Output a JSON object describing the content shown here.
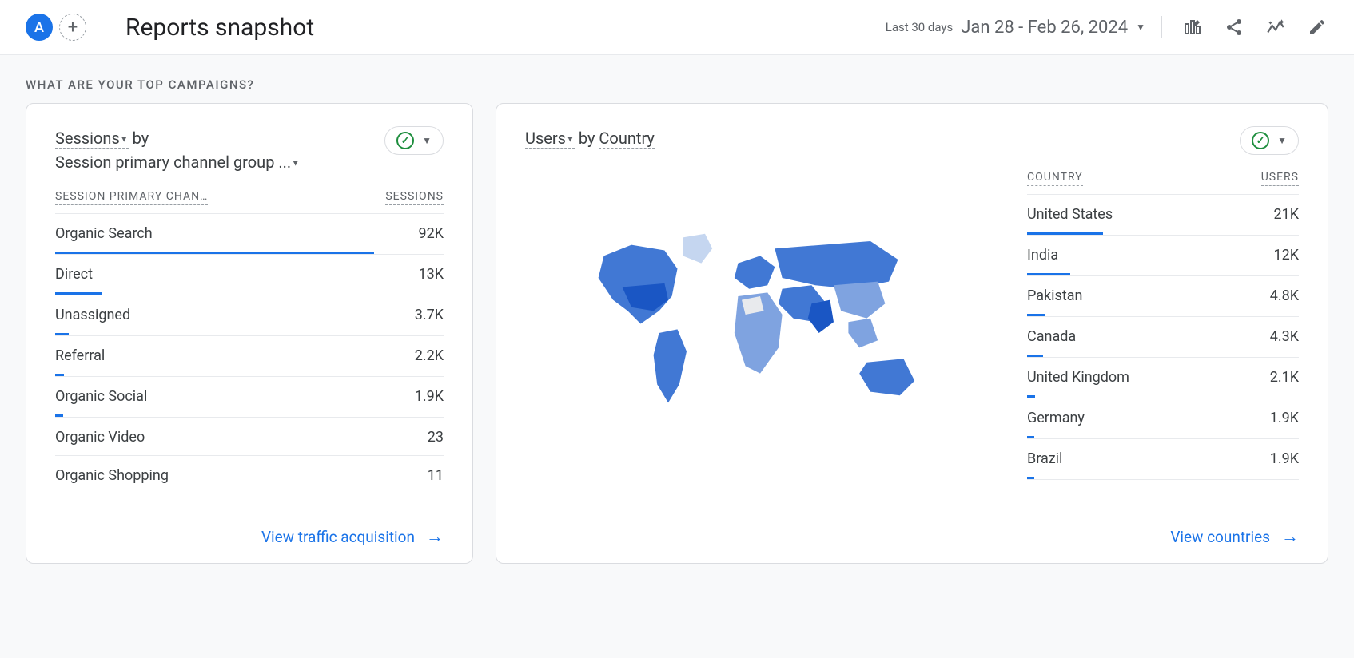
{
  "header": {
    "avatar_letter": "A",
    "title": "Reports snapshot",
    "date_label": "Last 30 days",
    "date_value": "Jan 28 - Feb 26, 2024"
  },
  "section_title": "WHAT ARE YOUR TOP CAMPAIGNS?",
  "sessions_card": {
    "title_metric": "Sessions",
    "title_by": " by",
    "title_dim": "Session primary channel group ...",
    "header_dim": "SESSION PRIMARY CHAN…",
    "header_metric": "SESSIONS",
    "max_value": 92000,
    "bar_color": "#1a73e8",
    "rows": [
      {
        "label": "Organic Search",
        "value": "92K",
        "bar_pct": 82
      },
      {
        "label": "Direct",
        "value": "13K",
        "bar_pct": 12
      },
      {
        "label": "Unassigned",
        "value": "3.7K",
        "bar_pct": 3.5
      },
      {
        "label": "Referral",
        "value": "2.2K",
        "bar_pct": 2.2
      },
      {
        "label": "Organic Social",
        "value": "1.9K",
        "bar_pct": 2
      },
      {
        "label": "Organic Video",
        "value": "23",
        "bar_pct": 0
      },
      {
        "label": "Organic Shopping",
        "value": "11",
        "bar_pct": 0
      }
    ],
    "footer_link": "View traffic acquisition"
  },
  "users_card": {
    "title_metric": "Users",
    "title_by": " by ",
    "title_dim": "Country",
    "header_dim": "COUNTRY",
    "header_metric": "USERS",
    "max_value": 21000,
    "bar_color": "#1a73e8",
    "rows": [
      {
        "label": "United States",
        "value": "21K",
        "bar_pct": 28
      },
      {
        "label": "India",
        "value": "12K",
        "bar_pct": 16
      },
      {
        "label": "Pakistan",
        "value": "4.8K",
        "bar_pct": 6.5
      },
      {
        "label": "Canada",
        "value": "4.3K",
        "bar_pct": 6
      },
      {
        "label": "United Kingdom",
        "value": "2.1K",
        "bar_pct": 3
      },
      {
        "label": "Germany",
        "value": "1.9K",
        "bar_pct": 2.6
      },
      {
        "label": "Brazil",
        "value": "1.9K",
        "bar_pct": 2.6
      }
    ],
    "footer_link": "View countries",
    "map_colors": {
      "high": "#1a56c4",
      "mid": "#4178d4",
      "low": "#7fa3e0",
      "lowest": "#c5d6f0",
      "none": "#e8eaed"
    }
  }
}
